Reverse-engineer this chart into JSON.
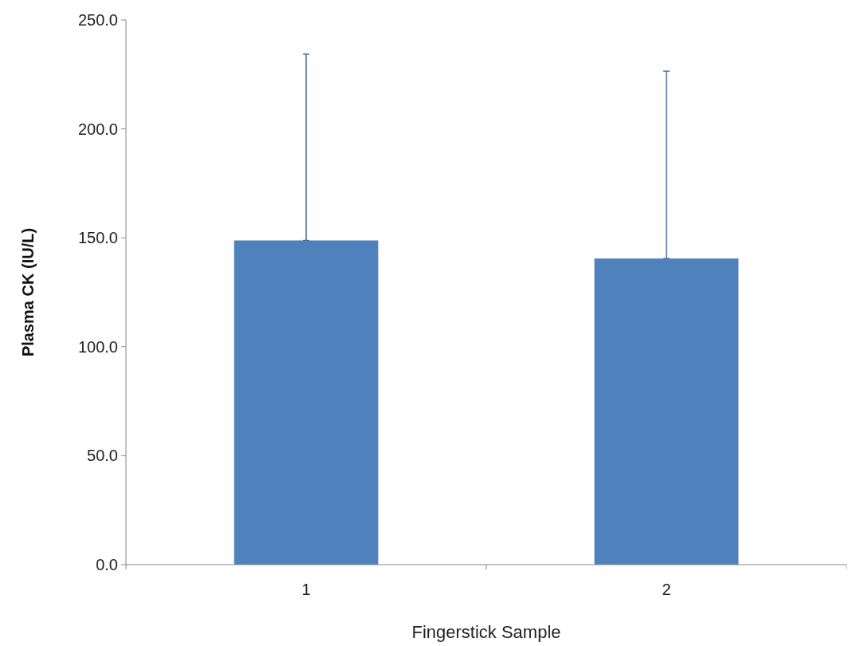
{
  "chart_data": {
    "type": "bar",
    "xlabel": "Fingerstick Sample",
    "ylabel": "Plasma CK (IU/L)",
    "categories": [
      "1",
      "2"
    ],
    "series": [
      {
        "color": "#4f81bd",
        "values": [
          148.8,
          140.5
        ],
        "errors": [
          [
            148.8,
            234.3
          ],
          [
            140.5,
            226.5
          ]
        ]
      }
    ],
    "ylim": [
      0,
      250
    ],
    "yticks": [
      {
        "value": 0,
        "label": "0.0"
      },
      {
        "value": 50,
        "label": "50.0"
      },
      {
        "value": 100,
        "label": "100.0"
      },
      {
        "value": 150,
        "label": "150.0"
      },
      {
        "value": 200,
        "label": "200.0"
      },
      {
        "value": 250,
        "label": "250.0"
      }
    ],
    "grid": false
  }
}
